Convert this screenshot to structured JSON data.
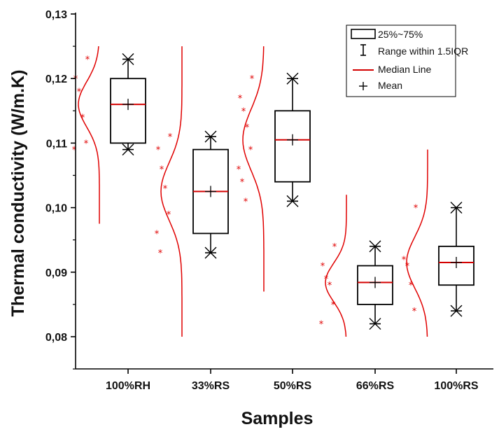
{
  "chart_data": {
    "type": "box",
    "xlabel": "Samples",
    "ylabel": "Thermal conductivity (W/m.K)",
    "ylim": [
      0.077,
      0.13
    ],
    "yticks": [
      0.08,
      0.09,
      0.1,
      0.11,
      0.12,
      0.13
    ],
    "ytick_labels": [
      "0,08",
      "0,09",
      "0,10",
      "0,11",
      "0,12",
      "0,13"
    ],
    "categories": [
      "100%RH",
      "33%RS",
      "50%RS",
      "66%RS",
      "100%RS"
    ],
    "boxes": [
      {
        "q1": 0.11,
        "median": 0.116,
        "q3": 0.12,
        "whisker_low": 0.109,
        "whisker_high": 0.123,
        "mean": 0.116,
        "points": [
          0.123,
          0.12,
          0.118,
          0.114,
          0.11,
          0.109
        ],
        "dist_range": [
          0.0975,
          0.125
        ]
      },
      {
        "q1": 0.096,
        "median": 0.1025,
        "q3": 0.109,
        "whisker_low": 0.093,
        "whisker_high": 0.111,
        "mean": 0.1025,
        "points": [
          0.111,
          0.109,
          0.106,
          0.103,
          0.099,
          0.096,
          0.093
        ],
        "dist_range": [
          0.08,
          0.125
        ]
      },
      {
        "q1": 0.104,
        "median": 0.1105,
        "q3": 0.115,
        "whisker_low": 0.101,
        "whisker_high": 0.12,
        "mean": 0.1105,
        "points": [
          0.12,
          0.117,
          0.115,
          0.1125,
          0.109,
          0.106,
          0.104,
          0.101
        ],
        "dist_range": [
          0.087,
          0.125
        ]
      },
      {
        "q1": 0.085,
        "median": 0.0884,
        "q3": 0.091,
        "whisker_low": 0.082,
        "whisker_high": 0.094,
        "mean": 0.0884,
        "points": [
          0.094,
          0.091,
          0.089,
          0.088,
          0.085,
          0.082
        ],
        "dist_range": [
          0.08,
          0.102
        ]
      },
      {
        "q1": 0.088,
        "median": 0.0915,
        "q3": 0.094,
        "whisker_low": 0.084,
        "whisker_high": 0.1,
        "mean": 0.0915,
        "points": [
          0.1,
          0.092,
          0.091,
          0.088,
          0.084
        ],
        "dist_range": [
          0.08,
          0.109
        ]
      }
    ],
    "legend": {
      "position": "top-right",
      "entries": [
        "25%~75%",
        "Range within 1.5IQR",
        "Median Line",
        "Mean"
      ]
    },
    "colors": {
      "box": "#000000",
      "median": "#d40000",
      "distribution": "#e00000",
      "points": "#e00000",
      "whisker": "#000000",
      "mean": "#000000"
    }
  }
}
